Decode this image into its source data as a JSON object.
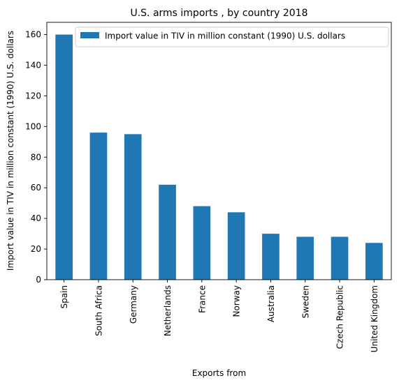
{
  "chart_data": {
    "type": "bar",
    "title": "U.S. arms imports , by country 2018",
    "xlabel": "Exports from",
    "ylabel": "Import value in TIV in million constant (1990) U.S. dollars",
    "categories": [
      "Spain",
      "South Africa",
      "Germany",
      "Netherlands",
      "France",
      "Norway",
      "Australia",
      "Sweden",
      "Czech Republic",
      "United Kingdom"
    ],
    "series": [
      {
        "name": "Import value in TIV in million constant (1990) U.S. dollars",
        "values": [
          160,
          96,
          95,
          62,
          48,
          44,
          30,
          28,
          28,
          24
        ],
        "color": "#1f77b4"
      }
    ],
    "ylim": [
      0,
      168
    ],
    "yticks": [
      0,
      20,
      40,
      60,
      80,
      100,
      120,
      140,
      160
    ],
    "grid": false,
    "legend_position": "top-right"
  }
}
